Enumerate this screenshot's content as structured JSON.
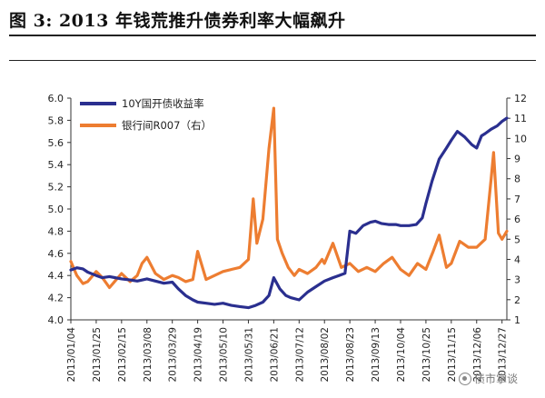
{
  "header": {
    "title": "图 3:  2013 年钱荒推升债券利率大幅飙升"
  },
  "watermark": {
    "text": "债市掌谈",
    "icon": "wechat-icon"
  },
  "chart_data": {
    "type": "line",
    "title": "图 3:  2013 年钱荒推升债券利率大幅飙升",
    "legend_position": "top-left",
    "grid": false,
    "x_tick_labels": [
      "2013/01/04",
      "2013/01/25",
      "2013/02/15",
      "2013/03/08",
      "2013/03/29",
      "2013/04/19",
      "2013/05/10",
      "2013/05/31",
      "2013/06/21",
      "2013/07/12",
      "2013/08/02",
      "2013/08/23",
      "2013/09/13",
      "2013/10/04",
      "2013/10/25",
      "2013/11/15",
      "2013/12/06",
      "2013/12/27"
    ],
    "y_left": {
      "ticks": [
        "4.0",
        "4.2",
        "4.4",
        "4.6",
        "4.8",
        "5.0",
        "5.2",
        "5.4",
        "5.6",
        "5.8",
        "6.0"
      ],
      "range": [
        4.0,
        6.0
      ]
    },
    "y_right": {
      "ticks": [
        "1",
        "2",
        "3",
        "4",
        "5",
        "6",
        "7",
        "8",
        "9",
        "10",
        "11",
        "12"
      ],
      "range": [
        1,
        12
      ]
    },
    "series": [
      {
        "name": "10Y国开债收益率",
        "axis": "left",
        "color": "#2a2f8f",
        "x": [
          "2013/01/04",
          "2013/01/09",
          "2013/01/14",
          "2013/01/18",
          "2013/01/25",
          "2013/01/30",
          "2013/02/05",
          "2013/02/15",
          "2013/02/22",
          "2013/02/28",
          "2013/03/08",
          "2013/03/15",
          "2013/03/22",
          "2013/03/29",
          "2013/04/03",
          "2013/04/09",
          "2013/04/15",
          "2013/04/19",
          "2013/04/26",
          "2013/05/03",
          "2013/05/10",
          "2013/05/17",
          "2013/05/24",
          "2013/05/31",
          "2013/06/06",
          "2013/06/12",
          "2013/06/17",
          "2013/06/21",
          "2013/06/26",
          "2013/07/01",
          "2013/07/05",
          "2013/07/12",
          "2013/07/19",
          "2013/07/26",
          "2013/08/02",
          "2013/08/09",
          "2013/08/14",
          "2013/08/19",
          "2013/08/23",
          "2013/08/28",
          "2013/09/03",
          "2013/09/09",
          "2013/09/13",
          "2013/09/18",
          "2013/09/24",
          "2013/09/30",
          "2013/10/04",
          "2013/10/11",
          "2013/10/17",
          "2013/10/22",
          "2013/10/25",
          "2013/10/30",
          "2013/11/05",
          "2013/11/11",
          "2013/11/15",
          "2013/11/20",
          "2013/11/26",
          "2013/12/02",
          "2013/12/06",
          "2013/12/10",
          "2013/12/13",
          "2013/12/18",
          "2013/12/23",
          "2013/12/27",
          "2013/12/31"
        ],
        "values": [
          4.45,
          4.47,
          4.46,
          4.43,
          4.4,
          4.38,
          4.39,
          4.37,
          4.36,
          4.35,
          4.37,
          4.35,
          4.33,
          4.34,
          4.28,
          4.22,
          4.18,
          4.16,
          4.15,
          4.14,
          4.15,
          4.13,
          4.12,
          4.11,
          4.13,
          4.16,
          4.22,
          4.38,
          4.28,
          4.22,
          4.2,
          4.18,
          4.25,
          4.3,
          4.35,
          4.38,
          4.4,
          4.42,
          4.8,
          4.78,
          4.85,
          4.88,
          4.89,
          4.87,
          4.86,
          4.86,
          4.85,
          4.85,
          4.86,
          4.92,
          5.05,
          5.25,
          5.45,
          5.55,
          5.62,
          5.7,
          5.65,
          5.58,
          5.55,
          5.66,
          5.68,
          5.72,
          5.75,
          5.79,
          5.82
        ]
      },
      {
        "name": "银行间R007（右）",
        "axis": "right",
        "color": "#ed7d31",
        "x": [
          "2013/01/04",
          "2013/01/09",
          "2013/01/14",
          "2013/01/18",
          "2013/01/25",
          "2013/01/30",
          "2013/02/05",
          "2013/02/15",
          "2013/02/22",
          "2013/02/28",
          "2013/03/04",
          "2013/03/08",
          "2013/03/15",
          "2013/03/22",
          "2013/03/29",
          "2013/04/03",
          "2013/04/09",
          "2013/04/15",
          "2013/04/19",
          "2013/04/26",
          "2013/05/03",
          "2013/05/10",
          "2013/05/17",
          "2013/05/24",
          "2013/05/31",
          "2013/06/04",
          "2013/06/07",
          "2013/06/12",
          "2013/06/17",
          "2013/06/21",
          "2013/06/24",
          "2013/06/28",
          "2013/07/03",
          "2013/07/08",
          "2013/07/12",
          "2013/07/19",
          "2013/07/26",
          "2013/07/31",
          "2013/08/02",
          "2013/08/09",
          "2013/08/16",
          "2013/08/23",
          "2013/08/30",
          "2013/09/06",
          "2013/09/13",
          "2013/09/20",
          "2013/09/27",
          "2013/10/04",
          "2013/10/11",
          "2013/10/18",
          "2013/10/25",
          "2013/10/31",
          "2013/11/05",
          "2013/11/11",
          "2013/11/15",
          "2013/11/22",
          "2013/11/29",
          "2013/12/06",
          "2013/12/13",
          "2013/12/18",
          "2013/12/20",
          "2013/12/24",
          "2013/12/27",
          "2013/12/31"
        ],
        "values": [
          3.9,
          3.2,
          2.8,
          2.9,
          3.4,
          3.1,
          2.6,
          3.3,
          2.9,
          3.2,
          3.8,
          4.1,
          3.3,
          3.0,
          3.2,
          3.1,
          2.9,
          3.0,
          4.4,
          3.0,
          3.2,
          3.4,
          3.5,
          3.6,
          4.0,
          7.0,
          4.8,
          6.0,
          9.5,
          11.5,
          5.0,
          4.3,
          3.6,
          3.2,
          3.5,
          3.3,
          3.6,
          4.0,
          3.8,
          4.8,
          3.6,
          3.8,
          3.4,
          3.6,
          3.4,
          3.8,
          4.1,
          3.5,
          3.2,
          3.8,
          3.5,
          4.4,
          5.2,
          3.6,
          3.8,
          4.9,
          4.6,
          4.6,
          5.0,
          8.0,
          9.3,
          5.3,
          5.0,
          5.4
        ]
      }
    ]
  }
}
